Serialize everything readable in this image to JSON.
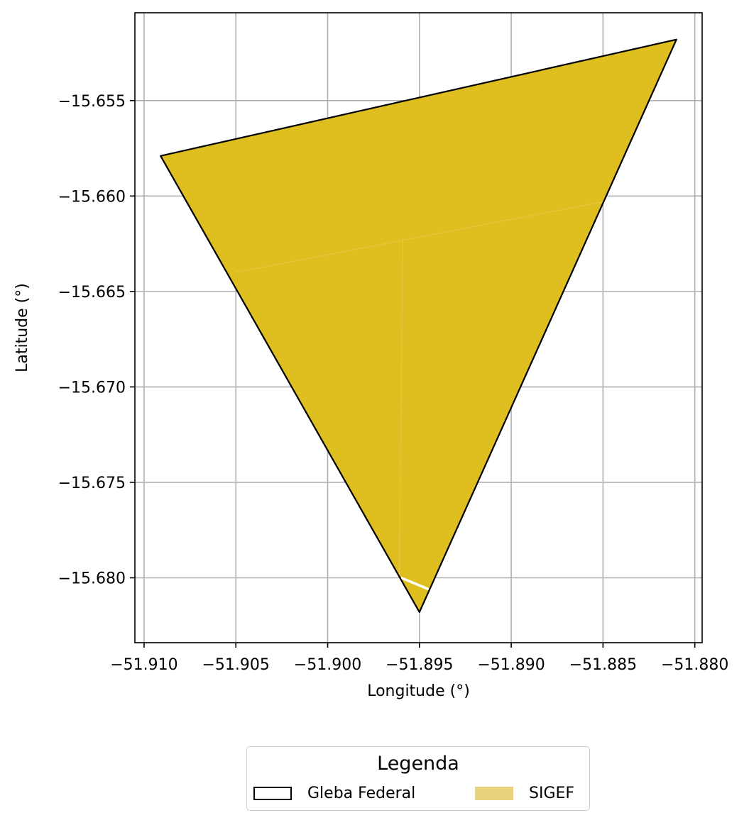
{
  "chart_data": {
    "type": "map",
    "xlabel": "Longitude (°)",
    "ylabel": "Latitude (°)",
    "xlim": [
      -51.9105,
      -51.8796
    ],
    "ylim": [
      -15.6834,
      -15.6504
    ],
    "x_ticks": [
      -51.91,
      -51.905,
      -51.9,
      -51.895,
      -51.89,
      -51.885,
      -51.88
    ],
    "x_tick_labels": [
      "−51.910",
      "−51.905",
      "−51.900",
      "−51.895",
      "−51.890",
      "−51.885",
      "−51.880"
    ],
    "y_ticks": [
      -15.655,
      -15.66,
      -15.665,
      -15.67,
      -15.675,
      -15.68
    ],
    "y_tick_labels": [
      "−15.655",
      "−15.660",
      "−15.665",
      "−15.670",
      "−15.675",
      "−15.680"
    ],
    "grid": true,
    "layers": [
      {
        "name": "SIGEF",
        "kind": "fill",
        "color": "#dfbe1f",
        "polygon": [
          [
            -51.9091,
            -15.6579
          ],
          [
            -51.881,
            -15.6518
          ],
          [
            -51.895,
            -15.6818
          ]
        ]
      },
      {
        "name": "Gleba Federal",
        "kind": "outline",
        "color": "#000000",
        "polygon": [
          [
            -51.9091,
            -15.6579
          ],
          [
            -51.881,
            -15.6518
          ],
          [
            -51.895,
            -15.6818
          ]
        ]
      }
    ],
    "internal_lines": [
      [
        [
          -51.905,
          -15.664
        ],
        [
          -51.885,
          -15.6603
        ]
      ],
      [
        [
          -51.8959,
          -15.6622
        ],
        [
          -51.8961,
          -15.68
        ]
      ]
    ],
    "white_segment": [
      [
        -51.896,
        -15.68
      ],
      [
        -51.8945,
        -15.6806
      ]
    ]
  },
  "legend": {
    "title": "Legenda",
    "items": [
      {
        "label": "Gleba Federal",
        "fill": "#ffffff",
        "stroke": "#000000"
      },
      {
        "label": "SIGEF",
        "fill": "#ead27a",
        "stroke": "none"
      }
    ],
    "placement": "bottom-center"
  }
}
